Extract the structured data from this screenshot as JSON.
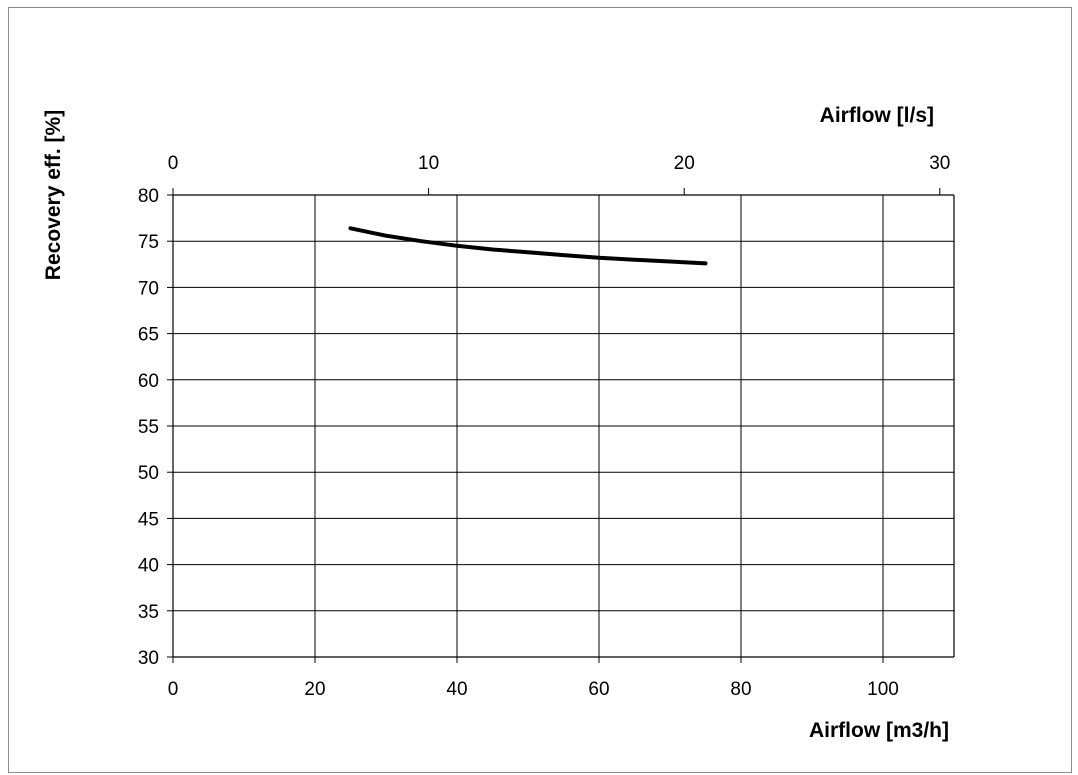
{
  "chart_data": {
    "type": "line",
    "series": [
      {
        "x": [
          25,
          30,
          35,
          40,
          45,
          50,
          55,
          60,
          65,
          70,
          75
        ],
        "y": [
          76.4,
          75.6,
          75.0,
          74.5,
          74.1,
          73.8,
          73.5,
          73.2,
          73.0,
          72.8,
          72.6
        ]
      }
    ],
    "xlabel": "Airflow [m3/h]",
    "x_range": [
      0,
      110
    ],
    "x_ticks": [
      0,
      20,
      40,
      60,
      80,
      100
    ],
    "x2label": "Airflow [l/s]",
    "x2_range": [
      0,
      30.5556
    ],
    "x2_ticks": [
      0,
      10,
      20,
      30
    ],
    "ylabel": "Recovery eff. [%]",
    "y_range": [
      30,
      80
    ],
    "y_ticks": [
      30,
      35,
      40,
      45,
      50,
      55,
      60,
      65,
      70,
      75,
      80
    ],
    "grid": true,
    "line_color": "#000000"
  }
}
